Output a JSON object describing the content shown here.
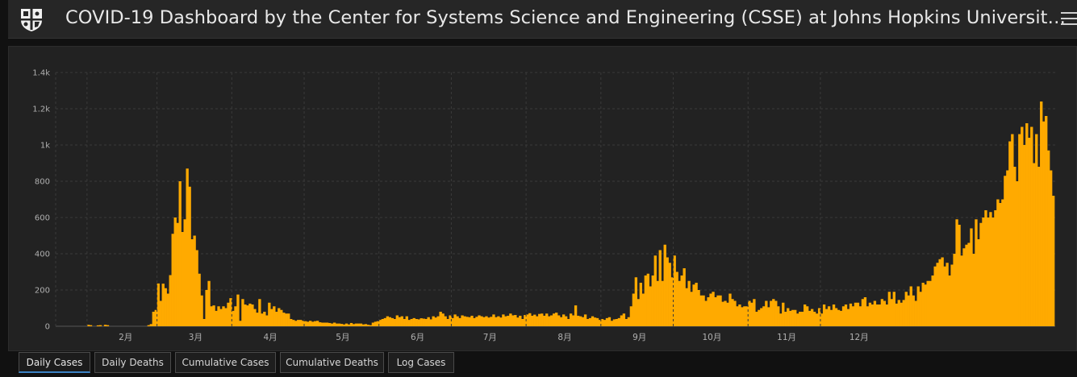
{
  "header": {
    "title": "COVID-19 Dashboard by the Center for Systems Science and Engineering (CSSE) at Johns Hopkins Universit…",
    "logo_icon": "jhu-shield-icon",
    "menu_icon": "hamburger-menu-icon"
  },
  "colors": {
    "bar": "#ffaa00",
    "panel_bg": "#222222",
    "grid": "#3a3a3a",
    "axis_text": "#b0b0b0",
    "tab_active_underline": "#3b82c4"
  },
  "chart_data": {
    "type": "bar",
    "title": "",
    "xlabel": "",
    "ylabel": "",
    "ylim": [
      0,
      1400
    ],
    "y_ticks": [
      "0",
      "200",
      "400",
      "600",
      "800",
      "1k",
      "1.2k",
      "1.4k"
    ],
    "x_ticks": [
      "2月",
      "3月",
      "4月",
      "5月",
      "6月",
      "7月",
      "8月",
      "9月",
      "10月",
      "11月",
      "12月"
    ],
    "grid": true,
    "start_date": "2020-01-04",
    "values": [
      0,
      0,
      0,
      0,
      0,
      0,
      0,
      0,
      0,
      0,
      0,
      0,
      8,
      6,
      0,
      0,
      5,
      6,
      0,
      8,
      6,
      0,
      0,
      0,
      0,
      0,
      0,
      0,
      0,
      0,
      0,
      0,
      0,
      0,
      0,
      0,
      0,
      6,
      12,
      80,
      90,
      236,
      140,
      235,
      210,
      180,
      282,
      510,
      600,
      570,
      800,
      520,
      590,
      870,
      770,
      480,
      500,
      420,
      290,
      170,
      40,
      200,
      250,
      110,
      115,
      85,
      110,
      95,
      110,
      100,
      130,
      155,
      85,
      110,
      175,
      30,
      150,
      120,
      115,
      125,
      120,
      95,
      75,
      150,
      70,
      80,
      60,
      130,
      95,
      110,
      80,
      100,
      90,
      75,
      70,
      70,
      40,
      35,
      30,
      35,
      35,
      30,
      28,
      25,
      30,
      25,
      28,
      30,
      22,
      20,
      20,
      20,
      18,
      15,
      20,
      15,
      15,
      13,
      10,
      15,
      10,
      18,
      12,
      15,
      15,
      15,
      10,
      12,
      8,
      6,
      20,
      25,
      28,
      35,
      40,
      45,
      55,
      50,
      45,
      40,
      60,
      50,
      55,
      40,
      55,
      35,
      40,
      45,
      40,
      38,
      44,
      42,
      40,
      50,
      38,
      55,
      48,
      55,
      80,
      70,
      55,
      40,
      60,
      45,
      65,
      55,
      45,
      60,
      55,
      52,
      50,
      58,
      45,
      52,
      60,
      55,
      50,
      55,
      48,
      52,
      65,
      50,
      55,
      48,
      65,
      55,
      58,
      70,
      60,
      62,
      48,
      58,
      40,
      62,
      65,
      72,
      58,
      64,
      55,
      68,
      70,
      58,
      70,
      55,
      60,
      70,
      75,
      60,
      50,
      65,
      55,
      40,
      70,
      60,
      115,
      58,
      55,
      50,
      65,
      40,
      45,
      55,
      48,
      45,
      35,
      40,
      35,
      45,
      50,
      30,
      38,
      40,
      45,
      60,
      70,
      40,
      50,
      110,
      180,
      270,
      150,
      240,
      180,
      280,
      290,
      220,
      280,
      390,
      250,
      420,
      250,
      450,
      380,
      350,
      270,
      390,
      300,
      250,
      280,
      320,
      210,
      250,
      190,
      230,
      240,
      200,
      170,
      170,
      140,
      160,
      180,
      190,
      160,
      170,
      170,
      135,
      140,
      130,
      180,
      150,
      140,
      110,
      120,
      105,
      110,
      110,
      140,
      130,
      150,
      80,
      90,
      100,
      110,
      140,
      105,
      140,
      150,
      140,
      110,
      70,
      130,
      80,
      100,
      85,
      90,
      90,
      70,
      80,
      80,
      120,
      110,
      85,
      95,
      80,
      70,
      100,
      70,
      120,
      95,
      110,
      90,
      120,
      100,
      90,
      85,
      110,
      120,
      95,
      125,
      110,
      130,
      130,
      110,
      150,
      160,
      110,
      130,
      120,
      140,
      120,
      120,
      150,
      140,
      120,
      190,
      150,
      190,
      125,
      145,
      130,
      145,
      190,
      170,
      220,
      170,
      140,
      220,
      190,
      240,
      230,
      250,
      250,
      280,
      330,
      350,
      370,
      380,
      330,
      350,
      280,
      340,
      400,
      590,
      560,
      390,
      430,
      450,
      460,
      540,
      400,
      590,
      480,
      570,
      600,
      640,
      600,
      630,
      600,
      640,
      700,
      680,
      700,
      830,
      860,
      1020,
      1060,
      880,
      800,
      1060,
      1100,
      1000,
      1120,
      1040,
      1100,
      900,
      1060,
      880,
      1240,
      1130,
      1160,
      970,
      860,
      720
    ]
  },
  "tabs": [
    {
      "label": "Daily Cases",
      "active": true
    },
    {
      "label": "Daily Deaths",
      "active": false
    },
    {
      "label": "Cumulative Cases",
      "active": false
    },
    {
      "label": "Cumulative Deaths",
      "active": false
    },
    {
      "label": "Log Cases",
      "active": false
    }
  ]
}
